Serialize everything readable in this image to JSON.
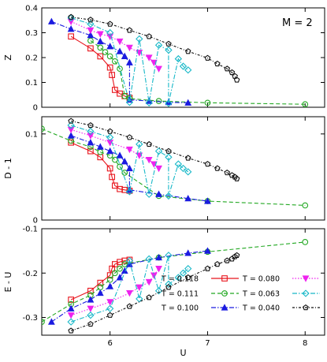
{
  "figure_label": "M = 2",
  "chart_data": {
    "type": "line",
    "xlabel": "U",
    "xlim": [
      5.3,
      8.2
    ],
    "x_ticks": [
      "6",
      "7",
      "8"
    ],
    "x_tick_values": [
      6,
      7,
      8
    ],
    "legend": {
      "placement": "bottom-right of bottom panel",
      "columns": 2
    },
    "series_styles": [
      {
        "name": "T = 0.118",
        "color": "#e8141c",
        "marker": "square",
        "dash": "solid"
      },
      {
        "name": "T = 0.111",
        "color": "#22a822",
        "marker": "circle",
        "dash": "dashed"
      },
      {
        "name": "T = 0.100",
        "color": "#1b1be0",
        "marker": "triangle-up",
        "dash": "dashdot"
      },
      {
        "name": "T = 0.080",
        "color": "#ee22ee",
        "marker": "triangle-down",
        "dash": "dotted"
      },
      {
        "name": "T = 0.063",
        "color": "#17b8c8",
        "marker": "diamond",
        "dash": "dashdot"
      },
      {
        "name": "T = 0.040",
        "color": "#111111",
        "marker": "pentagon",
        "dash": "dashdotted"
      }
    ],
    "panels": [
      {
        "ylabel": "Z",
        "ylim": [
          0,
          0.4
        ],
        "y_ticks": [
          "0",
          "0.1",
          "0.2",
          "0.3",
          "0.4"
        ],
        "y_tick_values": [
          0,
          0.1,
          0.2,
          0.3,
          0.4
        ],
        "series": [
          {
            "name": "T = 0.118",
            "points": [
              [
                5.6,
                0.285
              ],
              [
                5.8,
                0.237
              ],
              [
                5.9,
                0.205
              ],
              [
                6.0,
                0.16
              ],
              [
                6.02,
                0.13
              ],
              [
                6.05,
                0.07
              ],
              [
                6.1,
                0.055
              ],
              [
                6.15,
                0.045
              ],
              [
                6.2,
                0.038
              ]
            ]
          },
          {
            "name": "T = 0.111",
            "points": [
              [
                5.8,
                0.268
              ],
              [
                5.9,
                0.24
              ],
              [
                5.95,
                0.222
              ],
              [
                6.0,
                0.205
              ],
              [
                6.05,
                0.185
              ],
              [
                6.1,
                0.155
              ],
              [
                6.15,
                0.045
              ],
              [
                6.2,
                0.035
              ],
              [
                6.5,
                0.025
              ],
              [
                7.0,
                0.018
              ],
              [
                8.0,
                0.012
              ]
            ]
          },
          {
            "name": "T = 0.100",
            "points": [
              [
                5.4,
                0.345
              ],
              [
                5.6,
                0.315
              ],
              [
                5.8,
                0.29
              ],
              [
                5.9,
                0.265
              ],
              [
                6.0,
                0.245
              ],
              [
                6.1,
                0.225
              ],
              [
                6.15,
                0.205
              ],
              [
                6.2,
                0.18
              ],
              [
                6.2,
                0.03
              ],
              [
                6.4,
                0.025
              ],
              [
                6.6,
                0.02
              ],
              [
                6.8,
                0.018
              ]
            ]
          },
          {
            "name": "T = 0.080",
            "points": [
              [
                5.6,
                0.345
              ],
              [
                5.8,
                0.31
              ],
              [
                5.9,
                0.295
              ],
              [
                6.0,
                0.285
              ],
              [
                6.1,
                0.265
              ],
              [
                6.2,
                0.24
              ],
              [
                6.3,
                0.22
              ],
              [
                6.4,
                0.2
              ],
              [
                6.45,
                0.18
              ],
              [
                6.5,
                0.155
              ]
            ]
          },
          {
            "name": "T = 0.063",
            "points": [
              [
                5.6,
                0.36
              ],
              [
                5.8,
                0.335
              ],
              [
                6.0,
                0.3
              ],
              [
                6.3,
                0.275
              ],
              [
                6.5,
                0.25
              ],
              [
                6.6,
                0.23
              ],
              [
                6.7,
                0.195
              ],
              [
                6.75,
                0.165
              ],
              [
                6.8,
                0.15
              ],
              [
                6.2,
                0.02
              ],
              [
                6.4,
                0.018
              ],
              [
                6.6,
                0.016
              ]
            ]
          },
          {
            "name": "T = 0.040",
            "points": [
              [
                5.6,
                0.363
              ],
              [
                5.8,
                0.352
              ],
              [
                6.0,
                0.335
              ],
              [
                6.2,
                0.31
              ],
              [
                6.4,
                0.285
              ],
              [
                6.6,
                0.255
              ],
              [
                6.8,
                0.225
              ],
              [
                7.0,
                0.198
              ],
              [
                7.1,
                0.175
              ],
              [
                7.2,
                0.155
              ],
              [
                7.25,
                0.14
              ],
              [
                7.28,
                0.125
              ],
              [
                7.3,
                0.11
              ]
            ]
          }
        ]
      },
      {
        "ylabel": "D - 1",
        "ylim": [
          0,
          0.12
        ],
        "y_ticks": [
          "0",
          "0.1"
        ],
        "y_tick_values": [
          0,
          0.1
        ],
        "series": [
          {
            "name": "T = 0.118",
            "points": [
              [
                5.6,
                0.09
              ],
              [
                5.8,
                0.08
              ],
              [
                5.9,
                0.073
              ],
              [
                6.0,
                0.06
              ],
              [
                6.02,
                0.05
              ],
              [
                6.05,
                0.04
              ],
              [
                6.1,
                0.036
              ],
              [
                6.15,
                0.035
              ],
              [
                6.2,
                0.034
              ]
            ]
          },
          {
            "name": "T = 0.111",
            "points": [
              [
                5.6,
                0.092
              ],
              [
                5.8,
                0.085
              ],
              [
                5.9,
                0.079
              ],
              [
                6.0,
                0.075
              ],
              [
                6.05,
                0.07
              ],
              [
                6.1,
                0.062
              ],
              [
                6.15,
                0.055
              ],
              [
                6.5,
                0.028
              ],
              [
                7.0,
                0.022
              ],
              [
                8.0,
                0.017
              ],
              [
                5.3,
                0.106
              ]
            ]
          },
          {
            "name": "T = 0.100",
            "points": [
              [
                5.6,
                0.098
              ],
              [
                5.8,
                0.09
              ],
              [
                5.9,
                0.085
              ],
              [
                6.0,
                0.08
              ],
              [
                6.1,
                0.075
              ],
              [
                6.15,
                0.068
              ],
              [
                6.2,
                0.06
              ],
              [
                6.2,
                0.035
              ],
              [
                6.5,
                0.03
              ],
              [
                6.8,
                0.025
              ],
              [
                7.0,
                0.022
              ]
            ]
          },
          {
            "name": "T = 0.080",
            "points": [
              [
                5.6,
                0.105
              ],
              [
                5.8,
                0.098
              ],
              [
                6.0,
                0.09
              ],
              [
                6.2,
                0.082
              ],
              [
                6.3,
                0.075
              ],
              [
                6.4,
                0.07
              ],
              [
                6.45,
                0.065
              ],
              [
                6.5,
                0.06
              ]
            ]
          },
          {
            "name": "T = 0.063",
            "points": [
              [
                5.6,
                0.11
              ],
              [
                5.8,
                0.103
              ],
              [
                6.0,
                0.096
              ],
              [
                6.3,
                0.088
              ],
              [
                6.5,
                0.08
              ],
              [
                6.6,
                0.073
              ],
              [
                6.7,
                0.065
              ],
              [
                6.75,
                0.06
              ],
              [
                6.8,
                0.056
              ],
              [
                6.2,
                0.033
              ],
              [
                6.4,
                0.03
              ],
              [
                6.6,
                0.028
              ]
            ]
          },
          {
            "name": "T = 0.040",
            "points": [
              [
                5.6,
                0.115
              ],
              [
                5.8,
                0.11
              ],
              [
                6.0,
                0.103
              ],
              [
                6.2,
                0.096
              ],
              [
                6.4,
                0.088
              ],
              [
                6.6,
                0.08
              ],
              [
                6.8,
                0.072
              ],
              [
                7.0,
                0.065
              ],
              [
                7.1,
                0.06
              ],
              [
                7.2,
                0.055
              ],
              [
                7.25,
                0.052
              ],
              [
                7.28,
                0.05
              ],
              [
                7.3,
                0.048
              ]
            ]
          }
        ]
      },
      {
        "ylabel": "E - U",
        "ylim": [
          -0.34,
          -0.1
        ],
        "y_ticks": [
          "-0.1",
          "-0.2",
          "-0.3"
        ],
        "y_tick_values": [
          -0.1,
          -0.2,
          -0.3
        ],
        "series": [
          {
            "name": "T = 0.118",
            "points": [
              [
                5.6,
                -0.26
              ],
              [
                5.8,
                -0.24
              ],
              [
                5.9,
                -0.222
              ],
              [
                6.0,
                -0.205
              ],
              [
                6.02,
                -0.19
              ],
              [
                6.05,
                -0.18
              ],
              [
                6.1,
                -0.175
              ],
              [
                6.15,
                -0.172
              ],
              [
                6.2,
                -0.17
              ]
            ]
          },
          {
            "name": "T = 0.111",
            "points": [
              [
                5.3,
                -0.31
              ],
              [
                5.6,
                -0.27
              ],
              [
                5.8,
                -0.25
              ],
              [
                5.9,
                -0.232
              ],
              [
                6.0,
                -0.215
              ],
              [
                6.05,
                -0.2
              ],
              [
                6.1,
                -0.19
              ],
              [
                6.15,
                -0.18
              ],
              [
                6.5,
                -0.165
              ],
              [
                7.0,
                -0.152
              ],
              [
                8.0,
                -0.13
              ]
            ]
          },
          {
            "name": "T = 0.100",
            "points": [
              [
                5.4,
                -0.31
              ],
              [
                5.6,
                -0.28
              ],
              [
                5.8,
                -0.26
              ],
              [
                5.9,
                -0.245
              ],
              [
                6.0,
                -0.23
              ],
              [
                6.1,
                -0.21
              ],
              [
                6.15,
                -0.195
              ],
              [
                6.2,
                -0.18
              ],
              [
                6.5,
                -0.165
              ],
              [
                6.8,
                -0.155
              ],
              [
                7.0,
                -0.15
              ]
            ]
          },
          {
            "name": "T = 0.080",
            "points": [
              [
                5.6,
                -0.295
              ],
              [
                5.8,
                -0.28
              ],
              [
                6.0,
                -0.265
              ],
              [
                6.2,
                -0.245
              ],
              [
                6.3,
                -0.232
              ],
              [
                6.4,
                -0.22
              ],
              [
                6.45,
                -0.205
              ],
              [
                6.5,
                -0.19
              ]
            ]
          },
          {
            "name": "T = 0.063",
            "points": [
              [
                5.6,
                -0.31
              ],
              [
                5.8,
                -0.295
              ],
              [
                6.0,
                -0.28
              ],
              [
                6.3,
                -0.258
              ],
              [
                6.5,
                -0.24
              ],
              [
                6.6,
                -0.225
              ],
              [
                6.7,
                -0.21
              ],
              [
                6.75,
                -0.2
              ],
              [
                6.8,
                -0.19
              ],
              [
                6.2,
                -0.172
              ],
              [
                6.4,
                -0.168
              ],
              [
                6.6,
                -0.16
              ]
            ]
          },
          {
            "name": "T = 0.040",
            "points": [
              [
                5.6,
                -0.33
              ],
              [
                5.8,
                -0.315
              ],
              [
                6.0,
                -0.295
              ],
              [
                6.2,
                -0.275
              ],
              [
                6.4,
                -0.255
              ],
              [
                6.6,
                -0.232
              ],
              [
                6.8,
                -0.21
              ],
              [
                7.0,
                -0.19
              ],
              [
                7.1,
                -0.18
              ],
              [
                7.2,
                -0.172
              ],
              [
                7.25,
                -0.168
              ],
              [
                7.28,
                -0.163
              ],
              [
                7.3,
                -0.16
              ]
            ]
          }
        ]
      }
    ]
  }
}
